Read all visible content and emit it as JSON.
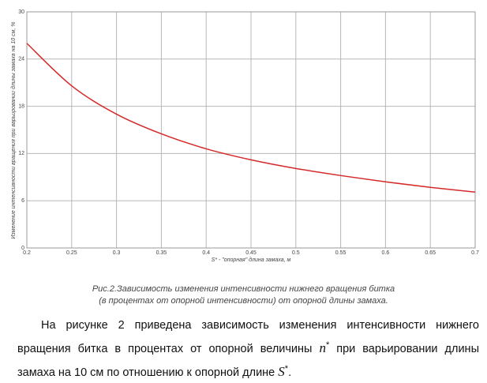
{
  "chart_data": {
    "type": "line",
    "y_label": "Изменение интенсивности вращения при варьировании длины замаха на 10 см, %",
    "x_label": "S* - \"опорная\" длина замаха, м",
    "x": [
      0.2,
      0.25,
      0.3,
      0.35,
      0.4,
      0.45,
      0.5,
      0.55,
      0.6,
      0.65,
      0.7
    ],
    "values": [
      26,
      20.6,
      17,
      14.5,
      12.6,
      11.2,
      10.1,
      9.2,
      8.4,
      7.7,
      7.1
    ],
    "color": "#d42a2a",
    "xlim": [
      0.2,
      0.7
    ],
    "xticks": [
      0.2,
      0.25,
      0.3,
      0.35,
      0.4,
      0.45,
      0.5,
      0.55,
      0.6,
      0.65,
      0.7
    ],
    "ylim": [
      0,
      30
    ],
    "yticks": [
      0,
      6,
      12,
      18,
      24,
      30
    ],
    "grid": true
  },
  "caption": [
    "Рис.2.Зависимость изменения интенсивности нижнего вращения битка",
    "(в процентах от опорной интенсивности) от опорной длины замаха."
  ],
  "paragraph": [
    "На рисунке 2 приведена зависимость изменения интенсивности нижнего вращения битка в процентах от опорной величины ",
    "n",
    "*",
    " при варьировании длины замаха на 10 см по отношению к опорной длине ",
    "S",
    "*",
    "."
  ]
}
